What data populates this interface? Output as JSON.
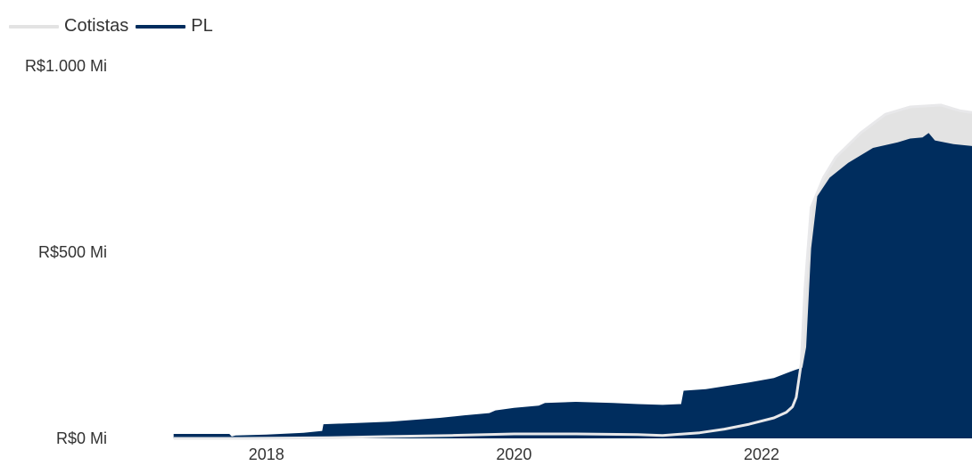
{
  "legend": {
    "items": [
      {
        "label": "Cotistas",
        "color": "#e3e3e3"
      },
      {
        "label": "PL",
        "color": "#002d5e"
      }
    ]
  },
  "colors": {
    "pl_fill": "#002d5e",
    "cotistas_fill": "#e3e3e3",
    "cotistas_line": "#e8e8ea"
  },
  "chart_data": {
    "type": "area",
    "title": "",
    "xlabel": "",
    "ylabel": "",
    "x_ticks": [
      {
        "value": 2018,
        "label": "2018"
      },
      {
        "value": 2020,
        "label": "2020"
      },
      {
        "value": 2022,
        "label": "2022"
      }
    ],
    "y_ticks": [
      {
        "value": 0,
        "label": "R$0 Mi"
      },
      {
        "value": 500,
        "label": "R$500 Mi"
      },
      {
        "value": 1000,
        "label": "R$1.000 Mi"
      }
    ],
    "xlim": [
      2017.0,
      2023.7
    ],
    "ylim": [
      0,
      1000
    ],
    "grid": false,
    "legend_position": "top-left",
    "series": [
      {
        "name": "PL",
        "style": "area",
        "color": "#002d5e",
        "x": [
          2017.25,
          2017.7,
          2017.72,
          2017.75,
          2018.0,
          2018.3,
          2018.45,
          2018.46,
          2018.8,
          2019.0,
          2019.2,
          2019.4,
          2019.6,
          2019.8,
          2019.85,
          2020.0,
          2020.2,
          2020.25,
          2020.5,
          2020.8,
          2021.0,
          2021.2,
          2021.35,
          2021.37,
          2021.55,
          2021.7,
          2021.9,
          2022.1,
          2022.2,
          2022.28,
          2022.33,
          2022.36,
          2022.4,
          2022.45,
          2022.55,
          2022.7,
          2022.9,
          2023.1,
          2023.2,
          2023.3,
          2023.35,
          2023.4,
          2023.55,
          2023.7
        ],
        "y": [
          12,
          12,
          5,
          8,
          10,
          15,
          20,
          38,
          42,
          45,
          50,
          55,
          62,
          68,
          75,
          82,
          88,
          95,
          98,
          95,
          92,
          90,
          92,
          128,
          132,
          140,
          150,
          162,
          175,
          185,
          190,
          245,
          510,
          650,
          700,
          740,
          780,
          795,
          805,
          808,
          820,
          800,
          790,
          785
        ]
      },
      {
        "name": "Cotistas",
        "style": "area-with-line",
        "color": "#e3e3e3",
        "x": [
          2017.25,
          2017.8,
          2018.5,
          2019.0,
          2019.5,
          2020.0,
          2020.5,
          2021.0,
          2021.2,
          2021.5,
          2021.7,
          2021.9,
          2022.1,
          2022.2,
          2022.25,
          2022.28,
          2022.32,
          2022.35,
          2022.4,
          2022.5,
          2022.6,
          2022.8,
          2023.0,
          2023.2,
          2023.45,
          2023.6,
          2023.7
        ],
        "y": [
          0,
          0,
          2,
          5,
          8,
          12,
          12,
          10,
          8,
          15,
          25,
          38,
          55,
          70,
          85,
          110,
          200,
          400,
          620,
          700,
          755,
          820,
          870,
          890,
          895,
          880,
          875
        ]
      }
    ]
  }
}
